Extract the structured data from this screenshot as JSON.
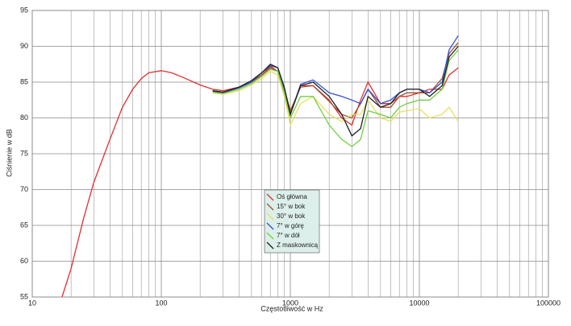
{
  "chart_data": {
    "type": "line",
    "x_label": "Częstotliwość w Hz",
    "y_label": "Ciśnienie w dB",
    "x": [
      17,
      20,
      25,
      30,
      40,
      50,
      60,
      70,
      80,
      100,
      120,
      150,
      200,
      250,
      300,
      400,
      500,
      600,
      700,
      800,
      900,
      1000,
      1200,
      1500,
      2000,
      2500,
      3000,
      3500,
      4000,
      5000,
      6000,
      7000,
      8000,
      10000,
      12000,
      15000,
      17000,
      20000
    ],
    "series": [
      {
        "name": "Oś główna",
        "color": "#e03030",
        "values": [
          55,
          59,
          66,
          71,
          77,
          81.5,
          84,
          85.5,
          86.3,
          86.6,
          86.3,
          85.6,
          84.6,
          84,
          83.8,
          84.3,
          85,
          86,
          87.2,
          86.5,
          83,
          80.5,
          84.5,
          84.5,
          82.5,
          80,
          79,
          82.5,
          85,
          82,
          82,
          83,
          83,
          83.5,
          84,
          84,
          86,
          87
        ]
      },
      {
        "name": "15° w bok",
        "color": "#a05030",
        "values": [
          null,
          null,
          null,
          null,
          null,
          null,
          null,
          null,
          null,
          null,
          null,
          null,
          null,
          83.8,
          83.6,
          84.2,
          85,
          86,
          87,
          86.5,
          84,
          81,
          84.3,
          84.5,
          82.3,
          80.5,
          80,
          82,
          84,
          81.5,
          81.5,
          83,
          83.5,
          83.5,
          83.5,
          85.5,
          89,
          90.5
        ]
      },
      {
        "name": "30° w bok",
        "color": "#e8e060",
        "values": [
          null,
          null,
          null,
          null,
          null,
          null,
          null,
          null,
          null,
          null,
          null,
          null,
          null,
          83.5,
          83.3,
          83.8,
          84.6,
          85.5,
          86.5,
          86,
          83,
          79,
          82,
          83,
          80.5,
          79.5,
          80.5,
          80.5,
          82.5,
          80,
          79.5,
          80.8,
          81,
          81.3,
          80,
          80.5,
          81.5,
          79.5
        ]
      },
      {
        "name": "7° w górę",
        "color": "#3050d8",
        "values": [
          null,
          null,
          null,
          null,
          null,
          null,
          null,
          null,
          null,
          null,
          null,
          null,
          null,
          83.7,
          83.5,
          84.2,
          85,
          86.3,
          87.3,
          87,
          84,
          80.5,
          84.7,
          85.3,
          83.5,
          83,
          82.5,
          82,
          84,
          82,
          82.5,
          83.5,
          84,
          84,
          83.5,
          85,
          89.5,
          91.5
        ]
      },
      {
        "name": "7° w dół",
        "color": "#70d040",
        "values": [
          null,
          null,
          null,
          null,
          null,
          null,
          null,
          null,
          null,
          null,
          null,
          null,
          null,
          83.6,
          83.4,
          84,
          84.8,
          85.8,
          86.8,
          86.5,
          83.5,
          80,
          83,
          83,
          79,
          77,
          76,
          77,
          81,
          80.5,
          80,
          81.5,
          82,
          82.5,
          82.5,
          84,
          88,
          89.5
        ]
      },
      {
        "name": "Z maskownicą",
        "color": "#202020",
        "values": [
          null,
          null,
          null,
          null,
          null,
          null,
          null,
          null,
          null,
          null,
          null,
          null,
          null,
          83.8,
          83.6,
          84.3,
          85.2,
          86.3,
          87.5,
          87,
          84.2,
          80.5,
          84.5,
          85,
          83,
          80.5,
          77.5,
          78.5,
          83,
          81.5,
          82,
          83.5,
          84,
          84,
          83,
          84.5,
          88.5,
          90
        ]
      }
    ],
    "xlim": [
      10,
      100000
    ],
    "xticks": [
      10,
      100,
      1000,
      10000,
      100000
    ],
    "x_log": true,
    "ylim": [
      55,
      95
    ],
    "yticks": [
      55,
      60,
      65,
      70,
      75,
      80,
      85,
      90,
      95
    ],
    "grid": true,
    "legend": "center"
  }
}
